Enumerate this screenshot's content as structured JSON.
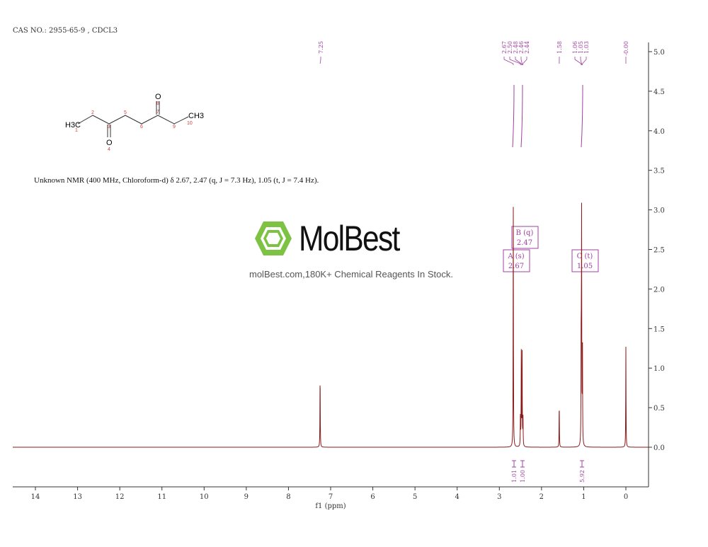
{
  "header": {
    "cas": "CAS NO.: 2955-65-9 , CDCL3"
  },
  "structure": {
    "atoms": [
      "H3C",
      "CH3",
      "O",
      "O"
    ],
    "numbers": [
      "1",
      "2",
      "3",
      "4",
      "5",
      "6",
      "7",
      "8",
      "9",
      "10"
    ]
  },
  "description": "Unknown NMR (400 MHz, Chloroform-d) δ 2.67, 2.47 (q, J = 7.3 Hz), 1.05 (t, J = 7.4 Hz).",
  "watermark": {
    "brand": "MolBest",
    "tagline": "molBest.com,180K+ Chemical Reagents In Stock.",
    "color": "#7dc242"
  },
  "chart_data": {
    "type": "line",
    "xlabel": "f1 (ppm)",
    "xlim": [
      14.5,
      -0.5
    ],
    "ylim": [
      -0.45,
      5.2
    ],
    "x_ticks": [
      "14",
      "13",
      "12",
      "11",
      "10",
      "9",
      "8",
      "7",
      "6",
      "5",
      "4",
      "3",
      "2",
      "1",
      "0"
    ],
    "y_ticks": [
      "5.0",
      "4.5",
      "4.0",
      "3.5",
      "3.0",
      "2.5",
      "2.0",
      "1.5",
      "1.0",
      "0.5",
      "0.0"
    ],
    "peak_labels": [
      "7.25",
      "2.67",
      "2.50",
      "2.48",
      "2.46",
      "2.44",
      "1.58",
      "1.06",
      "1.05",
      "1.03",
      "-0.00"
    ],
    "peaks": [
      {
        "ppm": 7.25,
        "height": 0.97
      },
      {
        "ppm": 2.67,
        "height": 3.18
      },
      {
        "ppm": 2.5,
        "height": 0.4
      },
      {
        "ppm": 2.48,
        "height": 1.18
      },
      {
        "ppm": 2.46,
        "height": 1.2
      },
      {
        "ppm": 2.44,
        "height": 0.42
      },
      {
        "ppm": 1.58,
        "height": 0.58
      },
      {
        "ppm": 1.06,
        "height": 1.48
      },
      {
        "ppm": 1.05,
        "height": 2.97
      },
      {
        "ppm": 1.03,
        "height": 1.45
      },
      {
        "ppm": 0.0,
        "height": 1.27
      }
    ],
    "multiplets": [
      {
        "label": "A (s)",
        "shift": "2.67",
        "ppm": 2.67
      },
      {
        "label": "B (q)",
        "shift": "2.47",
        "ppm": 2.47
      },
      {
        "label": "C (t)",
        "shift": "1.05",
        "ppm": 1.05
      }
    ],
    "integrals": [
      {
        "value": "1.01",
        "ppm": 2.67
      },
      {
        "value": "1.00",
        "ppm": 2.47
      },
      {
        "value": "5.92",
        "ppm": 1.05
      }
    ],
    "line_color": "#8b1a1a",
    "annotation_color": "#a040a0"
  }
}
